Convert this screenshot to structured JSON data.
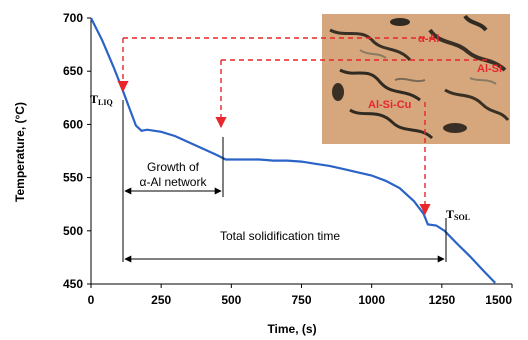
{
  "chart_data": {
    "type": "line",
    "xlabel": "Time, (s)",
    "ylabel": "Temperature, (°C)",
    "xlim": [
      0,
      1500
    ],
    "ylim": [
      450,
      700
    ],
    "x_ticks": [
      "0",
      "250",
      "500",
      "750",
      "1000",
      "1250",
      "1500"
    ],
    "y_ticks": [
      "700",
      "650",
      "600",
      "550",
      "500",
      "450"
    ],
    "grid": false,
    "line_color": "#2b63c7",
    "series": [
      {
        "x": [
          0,
          40,
          80,
          110,
          130,
          160,
          180,
          200,
          250,
          300,
          350,
          400,
          450,
          480,
          500,
          550,
          600,
          650,
          700,
          750,
          800,
          850,
          900,
          950,
          1000,
          1050,
          1100,
          1150,
          1185,
          1200,
          1230,
          1260,
          1300,
          1350,
          1400,
          1440
        ],
        "y": [
          700,
          679,
          654,
          634,
          620,
          599,
          594,
          595,
          593,
          589,
          583,
          577,
          571,
          567,
          567,
          567,
          567,
          566,
          566,
          565,
          563,
          561,
          558,
          555,
          552,
          547,
          540,
          528,
          516,
          506,
          505,
          500,
          489,
          476,
          462,
          451
        ]
      }
    ],
    "annotations": {
      "t_liq": {
        "main": "T",
        "sub": "LIQ"
      },
      "t_sol": {
        "main": "T",
        "sub": "SOL"
      },
      "growth_label_1": "Growth of",
      "growth_label_2": "α-Al network",
      "total_label": "Total solidification time",
      "photo_labels": [
        "α-Al",
        "Al-Si",
        "Al-Si-Cu"
      ]
    },
    "annotation_color": "#e8262b"
  }
}
